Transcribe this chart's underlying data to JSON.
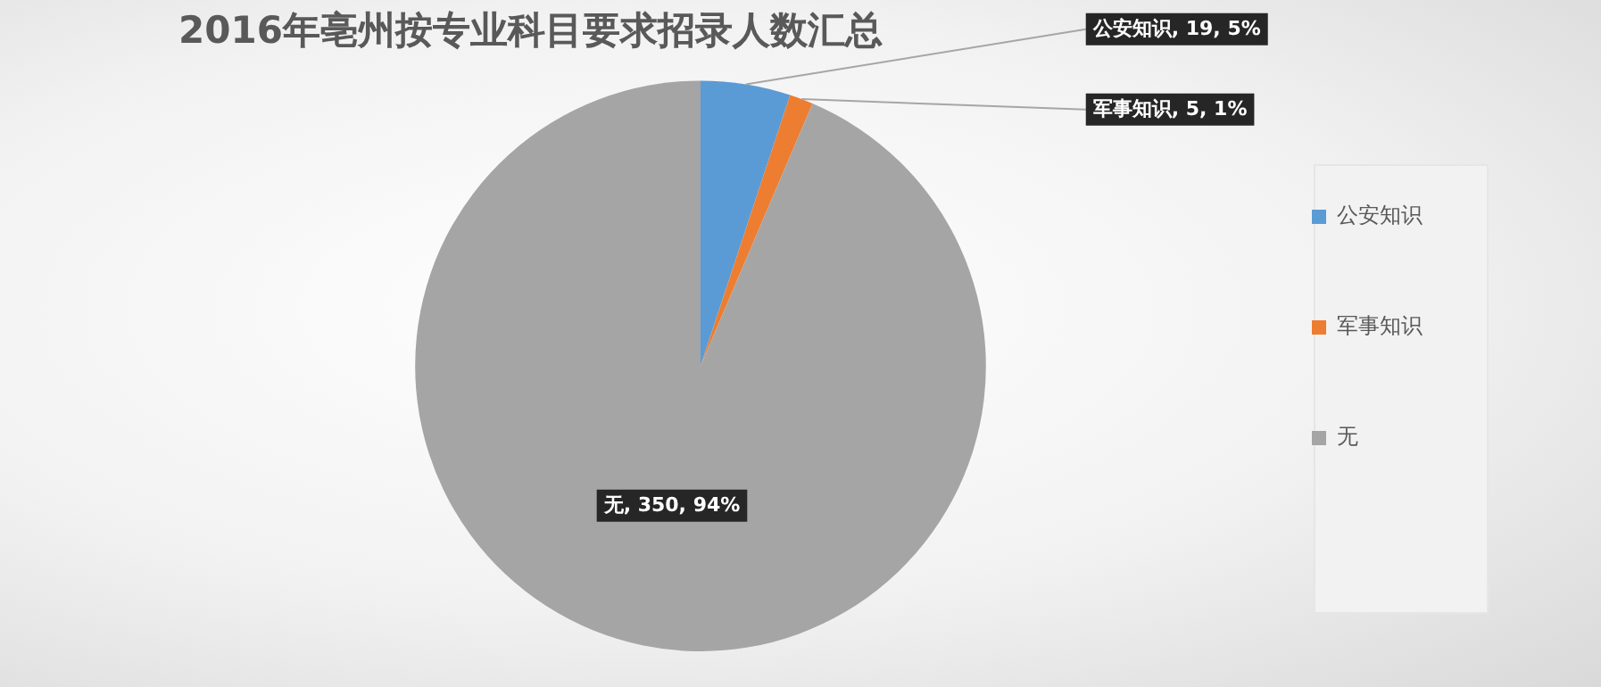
{
  "chart_data": {
    "type": "pie",
    "title": "2016年亳州按专业科目要求招录人数汇总",
    "categories": [
      "公安知识",
      "军事知识",
      "无"
    ],
    "values": [
      19,
      5,
      350
    ],
    "colors": [
      "#5b9bd5",
      "#ed7d31",
      "#a5a5a5"
    ],
    "value_labels": [
      "公安知识, 19, 5%",
      "军事知识, 5, 1%",
      "无, 350, 94%"
    ],
    "legend": "right"
  }
}
